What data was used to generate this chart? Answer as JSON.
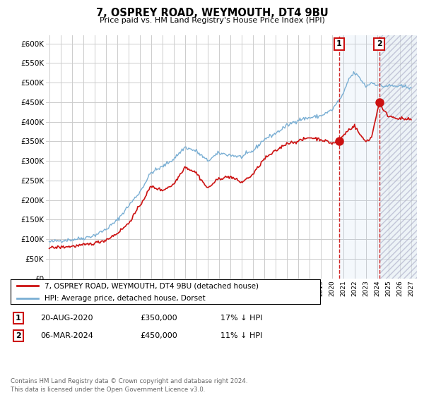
{
  "title": "7, OSPREY ROAD, WEYMOUTH, DT4 9BU",
  "subtitle": "Price paid vs. HM Land Registry's House Price Index (HPI)",
  "ylim": [
    0,
    620000
  ],
  "yticks": [
    0,
    50000,
    100000,
    150000,
    200000,
    250000,
    300000,
    350000,
    400000,
    450000,
    500000,
    550000,
    600000
  ],
  "xlim_start": 1994.7,
  "xlim_end": 2027.5,
  "hpi_color": "#7aafd4",
  "price_color": "#cc1111",
  "marker1_x": 2020.64,
  "marker1_y": 350000,
  "marker2_x": 2024.18,
  "marker2_y": 450000,
  "vline1_x": 2020.64,
  "vline2_x": 2024.18,
  "legend_label_price": "7, OSPREY ROAD, WEYMOUTH, DT4 9BU (detached house)",
  "legend_label_hpi": "HPI: Average price, detached house, Dorset",
  "note1_date": "20-AUG-2020",
  "note1_price": "£350,000",
  "note1_hpi": "17% ↓ HPI",
  "note2_date": "06-MAR-2024",
  "note2_price": "£450,000",
  "note2_hpi": "11% ↓ HPI",
  "footer": "Contains HM Land Registry data © Crown copyright and database right 2024.\nThis data is licensed under the Open Government Licence v3.0.",
  "bg_color": "#ffffff",
  "grid_color": "#cccccc"
}
